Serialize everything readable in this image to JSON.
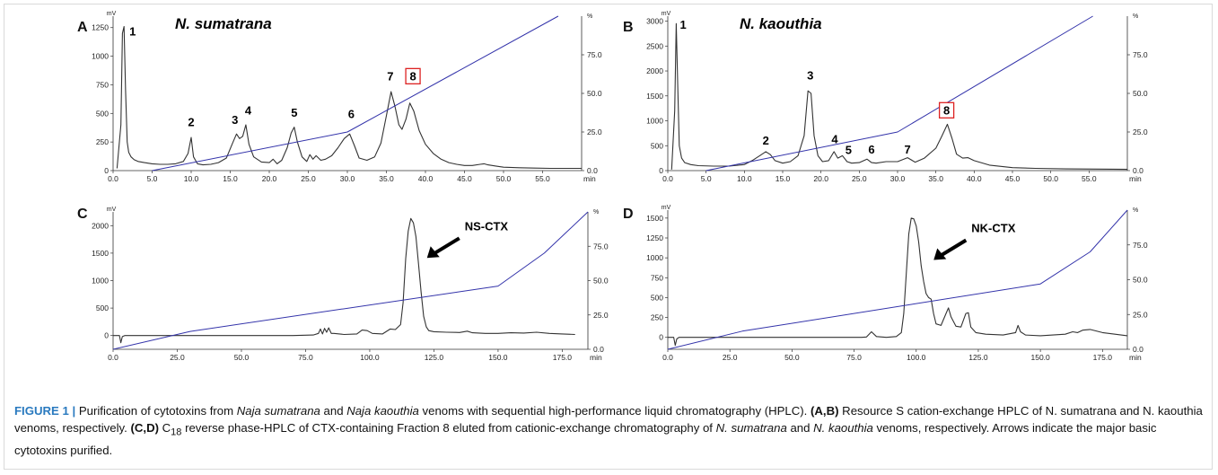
{
  "chart_data": [
    {
      "panel": "A",
      "type": "line",
      "title": "N. sumatrana",
      "y_unit": "mV",
      "y2_unit": "%",
      "x_unit": "min",
      "xlim": [
        0,
        60
      ],
      "ylim": [
        0,
        1350
      ],
      "y2lim": [
        0,
        100
      ],
      "x_ticks": [
        "0.0",
        "5.0",
        "10.0",
        "15.0",
        "20.0",
        "25.0",
        "30.0",
        "35.0",
        "40.0",
        "45.0",
        "50.0",
        "55.0"
      ],
      "y_ticks": [
        "0",
        "250",
        "500",
        "750",
        "1000",
        "1250"
      ],
      "y2_ticks": [
        "0.0",
        "25.0",
        "50.0",
        "75.0"
      ],
      "series": [
        {
          "axis": "left",
          "color": "#333333",
          "x": [
            0.5,
            1.0,
            1.2,
            1.4,
            1.6,
            1.8,
            2.0,
            2.3,
            2.7,
            3.2,
            4,
            5,
            6,
            7,
            8,
            9,
            9.6,
            10.0,
            10.3,
            10.8,
            11.5,
            12.5,
            13.5,
            14.5,
            15.3,
            15.8,
            16.2,
            16.6,
            17.0,
            17.4,
            18.0,
            19.0,
            20.0,
            20.5,
            21.0,
            21.6,
            22.3,
            22.8,
            23.2,
            23.6,
            24.2,
            24.8,
            25.2,
            25.6,
            26.0,
            26.6,
            27.2,
            28.0,
            28.8,
            29.6,
            30.3,
            30.9,
            31.5,
            32.5,
            33.5,
            34.3,
            35.0,
            35.6,
            36.1,
            36.6,
            37.0,
            37.5,
            38.0,
            38.5,
            39.2,
            40,
            41,
            42,
            43,
            44,
            45,
            46,
            47,
            47.5,
            48,
            49,
            50,
            52,
            54,
            56,
            58,
            60
          ],
          "y": [
            20,
            400,
            1200,
            1260,
            700,
            250,
            160,
            120,
            95,
            80,
            70,
            60,
            55,
            55,
            60,
            80,
            150,
            290,
            120,
            60,
            50,
            55,
            70,
            110,
            240,
            320,
            280,
            300,
            400,
            230,
            120,
            75,
            70,
            100,
            60,
            90,
            200,
            330,
            380,
            250,
            120,
            80,
            140,
            100,
            130,
            90,
            100,
            130,
            200,
            280,
            320,
            220,
            110,
            90,
            120,
            240,
            480,
            690,
            560,
            400,
            360,
            450,
            590,
            520,
            350,
            230,
            150,
            100,
            70,
            55,
            45,
            45,
            55,
            60,
            50,
            40,
            30,
            25,
            22,
            20,
            20,
            20
          ]
        },
        {
          "axis": "right",
          "color": "#3333aa",
          "x": [
            5,
            30,
            57
          ],
          "y": [
            0,
            25,
            100
          ]
        }
      ],
      "annotations": [
        {
          "label": "1",
          "x": 2.5,
          "y": 1180
        },
        {
          "label": "2",
          "x": 10.0,
          "y": 390
        },
        {
          "label": "3",
          "x": 15.6,
          "y": 410
        },
        {
          "label": "4",
          "x": 17.3,
          "y": 490
        },
        {
          "label": "5",
          "x": 23.2,
          "y": 470
        },
        {
          "label": "6",
          "x": 30.5,
          "y": 460
        },
        {
          "label": "7",
          "x": 35.5,
          "y": 790
        },
        {
          "label": "8",
          "x": 38.4,
          "y": 790,
          "boxed": true
        }
      ]
    },
    {
      "panel": "B",
      "type": "line",
      "title": "N. kaouthia",
      "y_unit": "mV",
      "y2_unit": "%",
      "x_unit": "min",
      "xlim": [
        0,
        60
      ],
      "ylim": [
        0,
        3100
      ],
      "y2lim": [
        0,
        100
      ],
      "x_ticks": [
        "0.0",
        "5.0",
        "10.0",
        "15.0",
        "20.0",
        "25.0",
        "30.0",
        "35.0",
        "40.0",
        "45.0",
        "50.0",
        "55.0"
      ],
      "y_ticks": [
        "0",
        "500",
        "1000",
        "1500",
        "2000",
        "2500",
        "3000"
      ],
      "y2_ticks": [
        "0.0",
        "25.0",
        "50.0",
        "75.0"
      ],
      "series": [
        {
          "axis": "left",
          "color": "#333333",
          "x": [
            0.5,
            0.9,
            1.1,
            1.3,
            1.5,
            1.8,
            2.2,
            3,
            4,
            6,
            8,
            10,
            11,
            12,
            12.8,
            13.4,
            14.0,
            15,
            16,
            17,
            17.8,
            18.3,
            18.7,
            19.1,
            19.6,
            20.2,
            21.0,
            21.7,
            22.2,
            22.8,
            23.4,
            24.0,
            25,
            26,
            26.6,
            27.2,
            28.5,
            30,
            31.3,
            32.3,
            33.5,
            35,
            35.8,
            36.5,
            37.1,
            37.7,
            38.5,
            39.2,
            40,
            42,
            45,
            48,
            52,
            56,
            60
          ],
          "y": [
            20,
            1200,
            2950,
            1700,
            500,
            250,
            160,
            120,
            100,
            90,
            90,
            120,
            200,
            300,
            380,
            320,
            200,
            150,
            180,
            300,
            700,
            1600,
            1550,
            700,
            300,
            180,
            200,
            380,
            250,
            300,
            180,
            150,
            160,
            230,
            160,
            150,
            180,
            180,
            260,
            170,
            250,
            450,
            700,
            930,
            650,
            330,
            250,
            260,
            200,
            110,
            60,
            45,
            35,
            30,
            25
          ]
        },
        {
          "axis": "right",
          "color": "#3333aa",
          "x": [
            5,
            30,
            55.5
          ],
          "y": [
            0,
            25,
            100
          ]
        }
      ],
      "annotations": [
        {
          "label": "1",
          "x": 2.0,
          "y": 2850
        },
        {
          "label": "2",
          "x": 12.8,
          "y": 520
        },
        {
          "label": "3",
          "x": 18.6,
          "y": 1830
        },
        {
          "label": "4",
          "x": 21.8,
          "y": 550
        },
        {
          "label": "5",
          "x": 23.6,
          "y": 330
        },
        {
          "label": "6",
          "x": 26.6,
          "y": 340
        },
        {
          "label": "7",
          "x": 31.3,
          "y": 340
        },
        {
          "label": "8",
          "x": 36.4,
          "y": 1130,
          "boxed": true
        }
      ]
    },
    {
      "panel": "C",
      "type": "line",
      "y_unit": "mV",
      "y2_unit": "%",
      "x_unit": "min",
      "xlim": [
        0,
        185
      ],
      "ylim": [
        -250,
        2250
      ],
      "y2lim": [
        0,
        100
      ],
      "x_ticks": [
        "0.0",
        "25.0",
        "50.0",
        "75.0",
        "100.0",
        "125.0",
        "150.0",
        "175.0"
      ],
      "y_ticks": [
        "0",
        "500",
        "1000",
        "1500",
        "2000"
      ],
      "y2_ticks": [
        "0.0",
        "25.0",
        "50.0",
        "75.0"
      ],
      "series": [
        {
          "axis": "left",
          "color": "#333333",
          "x": [
            0,
            2.5,
            3,
            3.6,
            4.5,
            10,
            30,
            50,
            70,
            78,
            80,
            80.8,
            81.6,
            82.4,
            83.2,
            84,
            85,
            86,
            90,
            95,
            97,
            99,
            101,
            105,
            108,
            110,
            112,
            113,
            114,
            115,
            116,
            117,
            118,
            119,
            120,
            121,
            122,
            123,
            125,
            130,
            135,
            138,
            140,
            145,
            150,
            155,
            160,
            165,
            170,
            175,
            180
          ],
          "y": [
            0,
            0,
            -130,
            -20,
            0,
            0,
            0,
            0,
            0,
            10,
            40,
            120,
            30,
            130,
            60,
            140,
            40,
            40,
            20,
            30,
            100,
            90,
            40,
            30,
            120,
            110,
            200,
            600,
            1400,
            1900,
            2130,
            2050,
            1800,
            1300,
            800,
            350,
            160,
            90,
            70,
            60,
            55,
            80,
            50,
            40,
            40,
            50,
            45,
            60,
            40,
            30,
            20
          ]
        },
        {
          "axis": "right",
          "color": "#3333aa",
          "x": [
            0,
            30,
            150,
            168,
            185
          ],
          "y": [
            0,
            13,
            46,
            70,
            100
          ]
        }
      ],
      "annotations": [
        {
          "label": "NS-CTX",
          "x": 130,
          "y": 2000,
          "arrow": true
        }
      ]
    },
    {
      "panel": "D",
      "type": "line",
      "y_unit": "mV",
      "y2_unit": "%",
      "x_unit": "min",
      "xlim": [
        0,
        185
      ],
      "ylim": [
        -150,
        1600
      ],
      "y2lim": [
        0,
        100
      ],
      "x_ticks": [
        "0.0",
        "25.0",
        "50.0",
        "75.0",
        "100.0",
        "125.0",
        "150.0",
        "175.0"
      ],
      "y_ticks": [
        "0",
        "250",
        "500",
        "750",
        "1000",
        "1250",
        "1500"
      ],
      "y2_ticks": [
        "0.0",
        "25.0",
        "50.0",
        "75.0"
      ],
      "series": [
        {
          "axis": "left",
          "color": "#333333",
          "x": [
            0,
            2.4,
            3,
            3.6,
            4.5,
            10,
            30,
            60,
            78,
            80,
            82,
            84,
            88,
            92,
            94,
            95,
            96,
            97,
            98,
            99,
            100,
            101,
            102,
            103,
            104,
            105,
            106,
            107,
            108,
            110,
            112,
            113,
            114,
            116,
            118,
            120,
            121,
            122,
            124,
            128,
            135,
            140,
            141,
            142,
            144,
            150,
            160,
            163,
            165,
            167,
            170,
            175,
            180,
            185
          ],
          "y": [
            0,
            0,
            -100,
            -20,
            0,
            0,
            0,
            0,
            0,
            5,
            70,
            10,
            0,
            10,
            60,
            300,
            800,
            1300,
            1500,
            1490,
            1400,
            1200,
            900,
            700,
            550,
            500,
            480,
            300,
            170,
            150,
            300,
            370,
            260,
            140,
            130,
            300,
            310,
            130,
            60,
            40,
            30,
            60,
            150,
            70,
            30,
            20,
            40,
            70,
            60,
            90,
            100,
            60,
            40,
            20
          ]
        },
        {
          "axis": "right",
          "color": "#3333aa",
          "x": [
            0,
            30,
            150,
            170,
            185
          ],
          "y": [
            0,
            13,
            47,
            70,
            100
          ]
        }
      ],
      "annotations": [
        {
          "label": "NK-CTX",
          "x": 115,
          "y": 1380,
          "arrow": true
        }
      ]
    }
  ],
  "panel_labels": {
    "A": "A",
    "B": "B",
    "C": "C",
    "D": "D"
  },
  "caption": {
    "figure_label": "FIGURE 1 |",
    "text_1": " Purification of cytotoxins from ",
    "species_1": "Naja sumatrana",
    "text_2": " and ",
    "species_2": "Naja kaouthia",
    "text_3": " venoms with sequential high-performance liquid chromatography (HPLC). ",
    "ref_ab": "(A,B)",
    "text_4": " Resource S cation-exchange HPLC of N. sumatrana and N. kaouthia venoms, respectively. ",
    "ref_cd": "(C,D)",
    "text_5": " C",
    "sub_18": "18",
    "text_6": " reverse phase-HPLC of CTX-containing Fraction 8 eluted from cationic-exchange chromatography of ",
    "species_3": "N. sumatrana",
    "text_7": " and ",
    "species_4": "N. kaouthia",
    "text_8": " venoms, respectively. Arrows indicate the major basic cytotoxins purified."
  }
}
